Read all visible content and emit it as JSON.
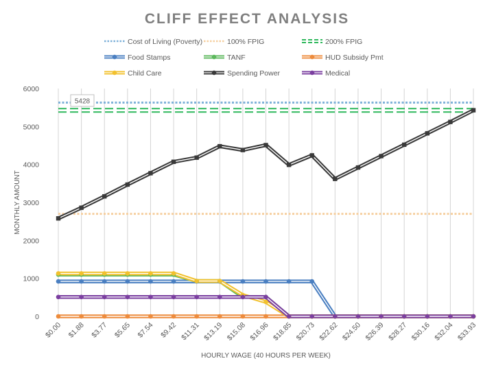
{
  "chart_data": {
    "type": "line",
    "title": "CLIFF EFFECT ANALYSIS",
    "xlabel": "HOURLY WAGE (40 HOURS PER WEEK)",
    "ylabel": "MONTHLY AMOUNT",
    "ylim": [
      0,
      6000
    ],
    "yticks": [
      0,
      1000,
      2000,
      3000,
      4000,
      5000,
      6000
    ],
    "grid": "vertical",
    "legend_position": "top",
    "categories": [
      "$0.00",
      "$1.88",
      "$3.77",
      "$5.65",
      "$7.54",
      "$9.42",
      "$11.31",
      "$13.19",
      "$15.08",
      "$16.96",
      "$18.85",
      "$20.73",
      "$22.62",
      "$24.50",
      "$26.39",
      "$28.27",
      "$30.16",
      "$32.04",
      "$33.93"
    ],
    "annotation": {
      "text": "5428",
      "category": "$0.00",
      "value": 5428
    },
    "series": [
      {
        "name": "Cost of Living (Poverty)",
        "style": "dotted",
        "marker": false,
        "color": "#7fb1d9",
        "values": [
          5630,
          5630,
          5630,
          5630,
          5630,
          5630,
          5630,
          5630,
          5630,
          5630,
          5630,
          5630,
          5630,
          5630,
          5630,
          5630,
          5630,
          5630,
          5630
        ]
      },
      {
        "name": "100% FPIG",
        "style": "dotted",
        "marker": false,
        "color": "#f6cfa0",
        "values": [
          2700,
          2700,
          2700,
          2700,
          2700,
          2700,
          2700,
          2700,
          2700,
          2700,
          2700,
          2700,
          2700,
          2700,
          2700,
          2700,
          2700,
          2700,
          2700
        ]
      },
      {
        "name": "200% FPIG",
        "style": "dashed",
        "marker": false,
        "color": "#2eb85c",
        "values": [
          5428,
          5428,
          5428,
          5428,
          5428,
          5428,
          5428,
          5428,
          5428,
          5428,
          5428,
          5428,
          5428,
          5428,
          5428,
          5428,
          5428,
          5428,
          5428
        ]
      },
      {
        "name": "Food Stamps",
        "style": "double",
        "marker": true,
        "color": "#4a7fc1",
        "values": [
          920,
          920,
          920,
          920,
          920,
          920,
          920,
          920,
          920,
          920,
          920,
          920,
          0,
          0,
          0,
          0,
          0,
          0,
          0
        ]
      },
      {
        "name": "TANF",
        "style": "double",
        "marker": true,
        "color": "#5cb85c",
        "values": [
          1100,
          1100,
          1100,
          1100,
          1100,
          1100,
          930,
          930,
          510,
          510,
          0,
          0,
          0,
          0,
          0,
          0,
          0,
          0,
          0
        ]
      },
      {
        "name": "HUD Subsidy Pmt",
        "style": "double",
        "marker": true,
        "color": "#ed8b3c",
        "values": [
          0,
          0,
          0,
          0,
          0,
          0,
          0,
          0,
          0,
          0,
          0,
          0,
          0,
          0,
          0,
          0,
          0,
          0,
          0
        ]
      },
      {
        "name": "Child Care",
        "style": "double",
        "marker": true,
        "color": "#f2c12e",
        "values": [
          1130,
          1130,
          1130,
          1130,
          1130,
          1130,
          930,
          930,
          560,
          380,
          0,
          0,
          0,
          0,
          0,
          0,
          0,
          0,
          0
        ]
      },
      {
        "name": "Spending Power",
        "style": "double",
        "marker": true,
        "color": "#3a3a3a",
        "values": [
          2580,
          2860,
          3160,
          3470,
          3770,
          4070,
          4180,
          4480,
          4380,
          4510,
          3990,
          4240,
          3620,
          3920,
          4220,
          4520,
          4820,
          5120,
          5428
        ]
      },
      {
        "name": "Medical",
        "style": "double",
        "marker": true,
        "color": "#7b3fa0",
        "values": [
          510,
          510,
          510,
          510,
          510,
          510,
          510,
          510,
          510,
          510,
          0,
          0,
          0,
          0,
          0,
          0,
          0,
          0,
          0
        ]
      }
    ]
  }
}
